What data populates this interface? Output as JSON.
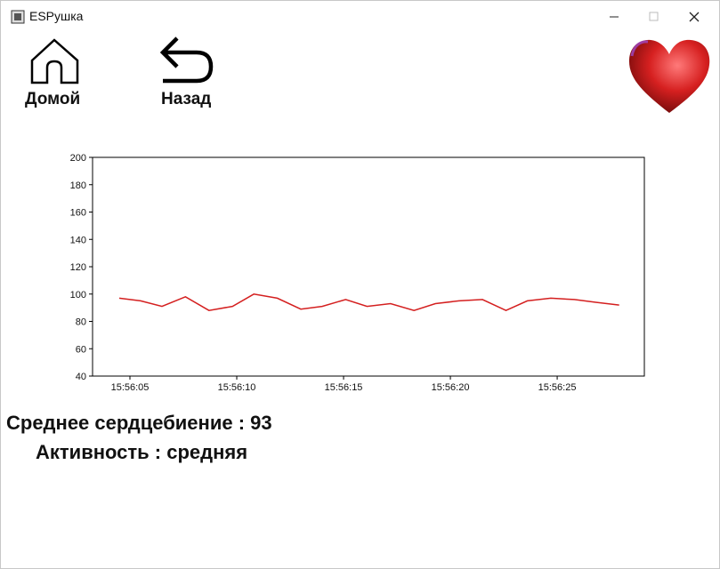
{
  "window": {
    "title": "ESPушка"
  },
  "toolbar": {
    "home": "Домой",
    "back": "Назад"
  },
  "chart_data": {
    "type": "line",
    "x": [
      "15:56:04.5",
      "15:56:05.5",
      "15:56:06.5",
      "15:56:07.6",
      "15:56:08.7",
      "15:56:09.8",
      "15:56:10.8",
      "15:56:11.9",
      "15:56:13.0",
      "15:56:14.0",
      "15:56:15.1",
      "15:56:16.1",
      "15:56:17.2",
      "15:56:18.3",
      "15:56:19.3",
      "15:56:20.4",
      "15:56:21.5",
      "15:56:22.6",
      "15:56:23.6",
      "15:56:24.7",
      "15:56:25.8",
      "15:56:26.8",
      "15:56:27.9"
    ],
    "values": [
      97,
      95,
      91,
      98,
      88,
      91,
      100,
      97,
      89,
      91,
      96,
      91,
      93,
      88,
      93,
      95,
      96,
      88,
      95,
      97,
      96,
      94,
      92
    ],
    "color": "#d41f1f",
    "xlim": [
      "15:56:03.25",
      "15:56:29.08"
    ],
    "xticks": [
      "15:56:05",
      "15:56:10",
      "15:56:15",
      "15:56:20",
      "15:56:25"
    ],
    "ylim": [
      40,
      200
    ],
    "yticks": [
      40,
      60,
      80,
      100,
      120,
      140,
      160,
      180,
      200
    ]
  },
  "stats": {
    "average": "Среднее сердцебиение : 93",
    "activity": "Активность : средняя"
  }
}
